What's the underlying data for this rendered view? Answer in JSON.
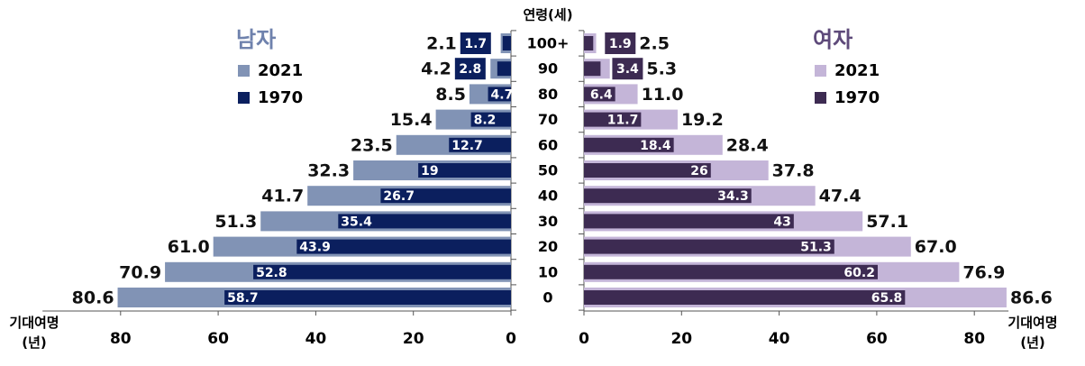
{
  "chart_data": {
    "type": "bar",
    "orientation": "horizontal",
    "y_label": "연령(세)",
    "categories": [
      "100+",
      "90",
      "80",
      "70",
      "60",
      "50",
      "40",
      "30",
      "20",
      "10",
      "0"
    ],
    "panels": [
      {
        "title": "남자",
        "direction": "left",
        "x_label": "기대여명\n(년)",
        "title_color": "#6f82ad",
        "xlim": [
          0,
          96
        ],
        "xticks": [
          0,
          20,
          40,
          60,
          80
        ],
        "series": [
          {
            "name": "2021",
            "color": "#8193b5",
            "values": [
              2.1,
              4.2,
              8.5,
              15.4,
              23.5,
              32.3,
              41.7,
              51.3,
              61.0,
              70.9,
              80.6
            ],
            "value_labels": [
              "2.1",
              "4.2",
              "8.5",
              "15.4",
              "23.5",
              "32.3",
              "41.7",
              "51.3",
              "61.0",
              "70.9",
              "80.6"
            ]
          },
          {
            "name": "1970",
            "color": "#0b1f5e",
            "values": [
              1.7,
              2.8,
              4.7,
              8.2,
              12.7,
              19.0,
              26.7,
              35.4,
              43.9,
              52.8,
              58.7
            ]
          }
        ]
      },
      {
        "title": "여자",
        "direction": "right",
        "x_label": "기대여명\n(년)",
        "title_color": "#5e4a7a",
        "xlim": [
          0,
          87
        ],
        "xticks": [
          0,
          20,
          40,
          60,
          80
        ],
        "series": [
          {
            "name": "2021",
            "color": "#c4b5d8",
            "values": [
              2.5,
              5.3,
              11.0,
              19.2,
              28.4,
              37.8,
              47.4,
              57.1,
              67.0,
              76.9,
              86.6
            ],
            "value_labels": [
              "2.5",
              "5.3",
              "11.0",
              "19.2",
              "28.4",
              "37.8",
              "47.4",
              "57.1",
              "67.0",
              "76.9",
              "86.6"
            ]
          },
          {
            "name": "1970",
            "color": "#3d2b52",
            "values": [
              1.9,
              3.4,
              6.4,
              11.7,
              18.4,
              26.0,
              34.3,
              43.0,
              51.3,
              60.2,
              65.8
            ]
          }
        ]
      }
    ]
  }
}
